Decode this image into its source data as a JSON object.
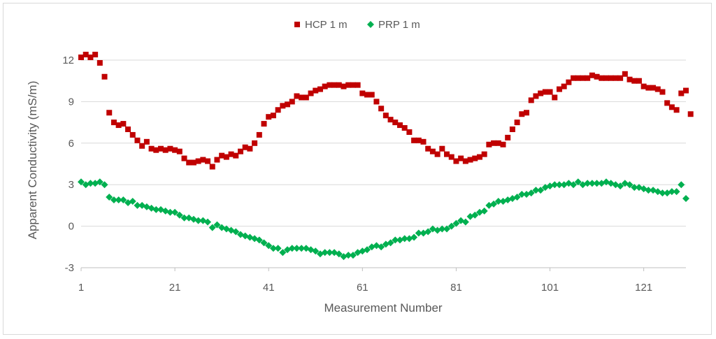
{
  "chart_data": {
    "type": "scatter",
    "title": "",
    "xlabel": "Measurement Number",
    "ylabel": "Apparent Conductivity (mS/m)",
    "xlim": [
      1,
      130
    ],
    "ylim": [
      -3,
      12
    ],
    "x_ticks": [
      1,
      21,
      41,
      61,
      81,
      101,
      121
    ],
    "y_ticks": [
      -3,
      0,
      3,
      6,
      9,
      12
    ],
    "grid": "horizontal",
    "legend_position": "top",
    "series": [
      {
        "name": "HCP 1 m",
        "marker": "square",
        "color": "#c00000",
        "values": [
          12.2,
          12.4,
          12.2,
          12.4,
          11.8,
          10.8,
          8.2,
          7.5,
          7.3,
          7.4,
          7.0,
          6.6,
          6.2,
          5.8,
          6.1,
          5.6,
          5.5,
          5.6,
          5.5,
          5.6,
          5.5,
          5.4,
          4.9,
          4.6,
          4.6,
          4.7,
          4.8,
          4.7,
          4.3,
          4.8,
          5.1,
          5.0,
          5.2,
          5.1,
          5.4,
          5.7,
          5.6,
          6.0,
          6.6,
          7.4,
          7.9,
          8.0,
          8.4,
          8.7,
          8.8,
          9.0,
          9.4,
          9.3,
          9.3,
          9.6,
          9.8,
          9.9,
          10.1,
          10.2,
          10.2,
          10.2,
          10.1,
          10.2,
          10.2,
          10.2,
          9.6,
          9.5,
          9.5,
          9.0,
          8.5,
          8.0,
          7.7,
          7.5,
          7.3,
          7.1,
          6.8,
          6.2,
          6.2,
          6.1,
          5.6,
          5.4,
          5.2,
          5.6,
          5.2,
          5.0,
          4.7,
          4.9,
          4.7,
          4.8,
          4.9,
          5.0,
          5.2,
          5.9,
          6.0,
          6.0,
          5.9,
          6.4,
          7.0,
          7.5,
          8.1,
          8.2,
          9.1,
          9.4,
          9.6,
          9.7,
          9.7,
          9.3,
          9.9,
          10.1,
          10.4,
          10.7,
          10.7,
          10.7,
          10.7,
          10.9,
          10.8,
          10.7,
          10.7,
          10.7,
          10.7,
          10.7,
          11.0,
          10.6,
          10.5,
          10.5,
          10.1,
          10.0,
          10.0,
          9.9,
          9.7,
          8.9,
          8.6,
          8.4,
          9.6,
          9.8,
          8.1
        ]
      },
      {
        "name": "PRP 1 m",
        "marker": "diamond",
        "color": "#00b050",
        "values": [
          3.2,
          3.0,
          3.1,
          3.1,
          3.2,
          3.0,
          2.1,
          1.9,
          1.9,
          1.9,
          1.7,
          1.8,
          1.5,
          1.5,
          1.4,
          1.3,
          1.2,
          1.2,
          1.1,
          1.0,
          1.0,
          0.8,
          0.6,
          0.6,
          0.5,
          0.4,
          0.4,
          0.3,
          -0.1,
          0.1,
          -0.1,
          -0.2,
          -0.3,
          -0.4,
          -0.6,
          -0.7,
          -0.8,
          -0.9,
          -1.0,
          -1.2,
          -1.4,
          -1.6,
          -1.6,
          -1.9,
          -1.7,
          -1.6,
          -1.6,
          -1.6,
          -1.6,
          -1.7,
          -1.8,
          -2.0,
          -1.9,
          -1.9,
          -1.9,
          -2.0,
          -2.2,
          -2.1,
          -2.1,
          -1.9,
          -1.8,
          -1.7,
          -1.5,
          -1.4,
          -1.5,
          -1.3,
          -1.2,
          -1.0,
          -1.0,
          -0.9,
          -0.9,
          -0.8,
          -0.5,
          -0.5,
          -0.4,
          -0.2,
          -0.3,
          -0.2,
          -0.2,
          0.0,
          0.2,
          0.4,
          0.3,
          0.7,
          0.8,
          1.0,
          1.1,
          1.5,
          1.6,
          1.8,
          1.8,
          1.9,
          2.0,
          2.1,
          2.3,
          2.3,
          2.4,
          2.6,
          2.6,
          2.8,
          2.9,
          3.0,
          3.0,
          3.0,
          3.1,
          3.0,
          3.2,
          3.0,
          3.1,
          3.1,
          3.1,
          3.1,
          3.2,
          3.1,
          3.0,
          2.9,
          3.1,
          3.0,
          2.8,
          2.8,
          2.7,
          2.6,
          2.6,
          2.5,
          2.4,
          2.4,
          2.5,
          2.5,
          3.0,
          2.0
        ]
      }
    ]
  }
}
